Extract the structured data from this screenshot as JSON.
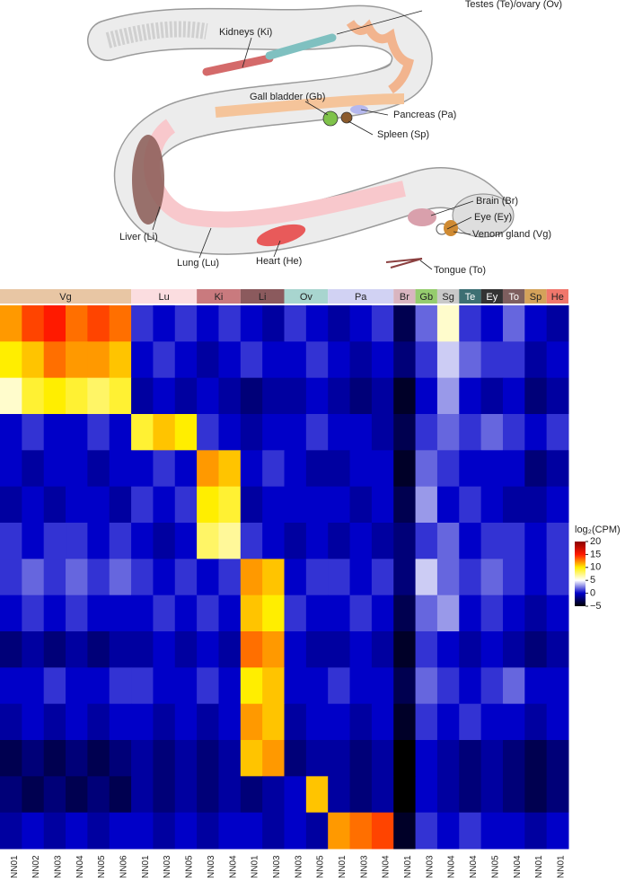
{
  "illustration": {
    "labels": [
      "Testes (Te)/ovary (Ov)",
      "Kidneys (Ki)",
      "Gall bladder (Gb)",
      "Pancreas (Pa)",
      "Spleen (Sp)",
      "Brain (Br)",
      "Eye (Ey)",
      "Venom gland (Vg)",
      "Liver (Li)",
      "Lung (Lu)",
      "Heart (He)",
      "Tongue (To)"
    ]
  },
  "chart_data": {
    "type": "heatmap",
    "column_groups": [
      {
        "name": "Vg",
        "color": "#e8c6a4",
        "columns": [
          "NN01",
          "NN02",
          "NN03",
          "NN04",
          "NN05",
          "NN06"
        ]
      },
      {
        "name": "Lu",
        "color": "#fbdde0",
        "columns": [
          "NN01",
          "NN03",
          "NN05"
        ]
      },
      {
        "name": "Ki",
        "color": "#c97a7e",
        "columns": [
          "NN03",
          "NN04"
        ]
      },
      {
        "name": "Li",
        "color": "#8b5a5d",
        "columns": [
          "NN01",
          "NN03"
        ]
      },
      {
        "name": "Ov",
        "color": "#a8d5cf",
        "columns": [
          "NN03",
          "NN05"
        ]
      },
      {
        "name": "Pa",
        "color": "#d1d2f3",
        "columns": [
          "NN01",
          "NN03",
          "NN04"
        ]
      },
      {
        "name": "Br",
        "color": "#d9b5c0",
        "columns": [
          "NN01"
        ]
      },
      {
        "name": "Gb",
        "color": "#95cc6e",
        "columns": [
          "NN03"
        ]
      },
      {
        "name": "Sg",
        "color": "#c9c9c9",
        "columns": [
          "NN04"
        ]
      },
      {
        "name": "Te",
        "color": "#3d6f73",
        "columns": [
          "NN04"
        ]
      },
      {
        "name": "Ey",
        "color": "#333333",
        "columns": [
          "NN05"
        ]
      },
      {
        "name": "To",
        "color": "#7e5f5f",
        "columns": [
          "NN04"
        ]
      },
      {
        "name": "Sp",
        "color": "#d4a25a",
        "columns": [
          "NN01"
        ]
      },
      {
        "name": "He",
        "color": "#f0776c",
        "columns": [
          "NN01"
        ]
      }
    ],
    "values": [
      [
        12,
        14,
        15,
        13,
        14,
        13,
        1,
        0,
        1,
        0,
        1,
        0,
        -1,
        1,
        0,
        -1,
        0,
        1,
        -3,
        2,
        6,
        1,
        0,
        2,
        0,
        -1
      ],
      [
        10,
        11,
        13,
        12,
        12,
        11,
        0,
        1,
        0,
        -1,
        0,
        1,
        0,
        0,
        1,
        0,
        -1,
        0,
        -2,
        1,
        4,
        2,
        1,
        1,
        -1,
        0
      ],
      [
        6,
        9,
        10,
        9,
        8,
        9,
        -1,
        0,
        -1,
        0,
        -1,
        -2,
        -1,
        -1,
        0,
        -1,
        -2,
        -1,
        -4,
        0,
        3,
        0,
        -1,
        0,
        -2,
        -1
      ],
      [
        0,
        1,
        0,
        0,
        1,
        0,
        9,
        11,
        10,
        1,
        0,
        -1,
        0,
        0,
        1,
        0,
        0,
        -1,
        -3,
        1,
        2,
        1,
        2,
        1,
        0,
        1
      ],
      [
        0,
        -1,
        0,
        0,
        -1,
        0,
        0,
        1,
        0,
        12,
        11,
        0,
        1,
        0,
        -1,
        -1,
        0,
        0,
        -4,
        2,
        1,
        0,
        0,
        0,
        -2,
        -1
      ],
      [
        -1,
        0,
        -1,
        0,
        0,
        -1,
        1,
        0,
        1,
        10,
        9,
        -1,
        0,
        0,
        0,
        0,
        -1,
        0,
        -3,
        3,
        0,
        1,
        0,
        -1,
        -1,
        0
      ],
      [
        1,
        0,
        1,
        1,
        0,
        1,
        0,
        -1,
        0,
        8,
        7,
        1,
        0,
        -1,
        0,
        -1,
        0,
        -1,
        -2,
        1,
        2,
        0,
        1,
        1,
        0,
        1
      ],
      [
        1,
        2,
        1,
        2,
        1,
        2,
        1,
        0,
        1,
        0,
        1,
        12,
        11,
        0,
        1,
        1,
        0,
        1,
        -2,
        4,
        2,
        1,
        2,
        1,
        0,
        1
      ],
      [
        0,
        1,
        0,
        1,
        0,
        0,
        0,
        1,
        0,
        1,
        0,
        11,
        10,
        1,
        0,
        0,
        1,
        0,
        -3,
        2,
        3,
        0,
        1,
        0,
        -1,
        0
      ],
      [
        -2,
        -1,
        -2,
        -1,
        -2,
        -1,
        -1,
        0,
        -1,
        0,
        -1,
        13,
        12,
        0,
        -1,
        -1,
        0,
        -1,
        -4,
        1,
        0,
        -1,
        0,
        -1,
        -2,
        -1
      ],
      [
        0,
        0,
        1,
        0,
        0,
        1,
        1,
        0,
        0,
        1,
        0,
        10,
        11,
        0,
        0,
        1,
        0,
        0,
        -3,
        2,
        1,
        0,
        1,
        2,
        0,
        0
      ],
      [
        -1,
        0,
        -1,
        0,
        -1,
        0,
        0,
        -1,
        0,
        -1,
        0,
        12,
        11,
        -1,
        0,
        0,
        -1,
        0,
        -4,
        1,
        0,
        1,
        0,
        0,
        -1,
        0
      ],
      [
        -3,
        -2,
        -3,
        -2,
        -3,
        -2,
        -1,
        -2,
        -1,
        -2,
        -1,
        11,
        12,
        -2,
        -1,
        -1,
        -2,
        -1,
        -5,
        0,
        -1,
        -2,
        -1,
        -2,
        -3,
        -2
      ],
      [
        -2,
        -3,
        -2,
        -3,
        -2,
        -3,
        -1,
        -2,
        -1,
        -2,
        -1,
        -2,
        -1,
        0,
        11,
        -1,
        -2,
        -1,
        -5,
        0,
        -1,
        -2,
        -1,
        -2,
        -3,
        -2
      ],
      [
        -1,
        0,
        -1,
        0,
        -1,
        0,
        0,
        -1,
        0,
        -1,
        0,
        0,
        -1,
        0,
        -1,
        12,
        13,
        14,
        -4,
        1,
        0,
        1,
        0,
        0,
        -1,
        0
      ]
    ],
    "colorbar_title": "log₂(CPM)",
    "clim": [
      -5,
      20
    ],
    "colorscale": [
      "#000000",
      "#0000c8",
      "#ffffff",
      "#ffee00",
      "#ff1a00",
      "#8b0000"
    ],
    "colorbar_ticks": [
      20,
      15,
      10,
      5,
      0,
      {
        "value": -5,
        "label": "−5"
      }
    ]
  }
}
